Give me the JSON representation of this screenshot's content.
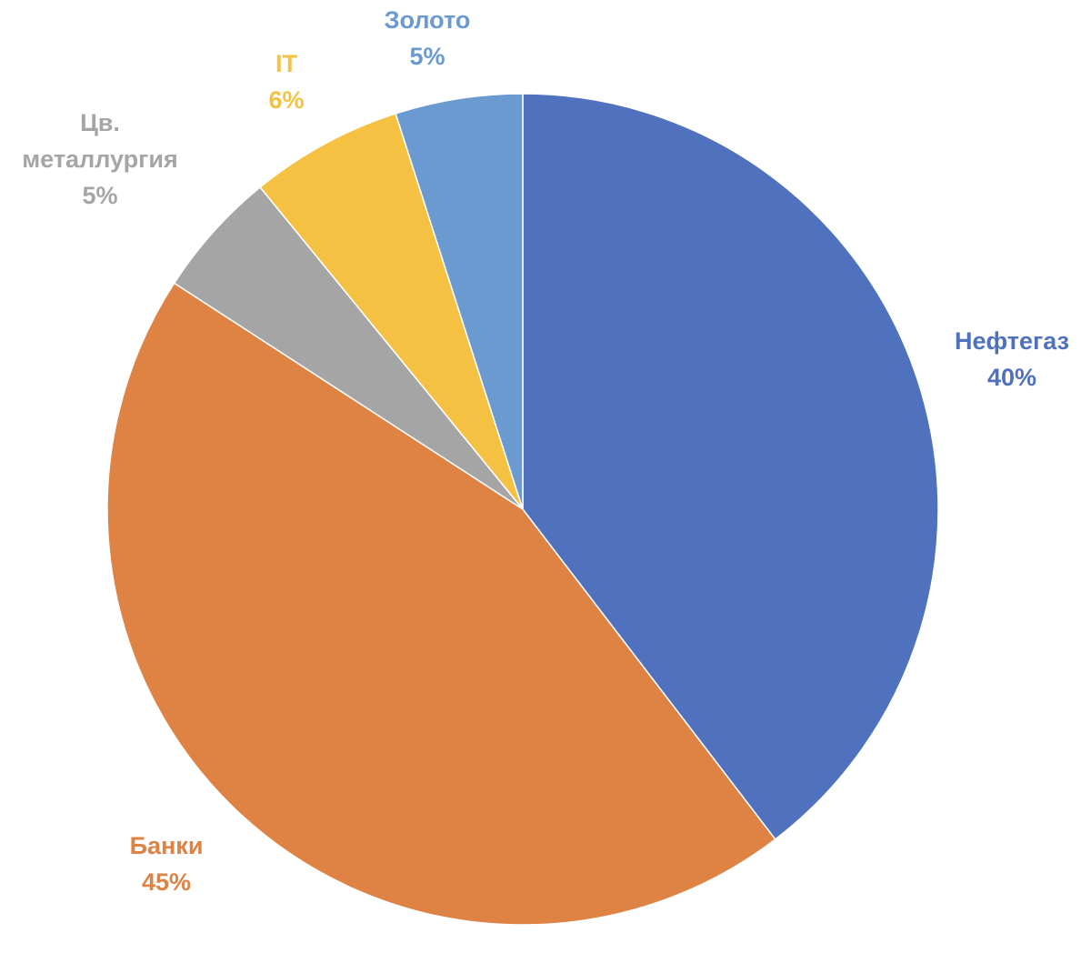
{
  "chart_data": {
    "type": "pie",
    "categories": [
      "Нефтегаз",
      "Банки",
      "Цв. металлургия",
      "IT",
      "Золото"
    ],
    "values": [
      40,
      45,
      5,
      6,
      5
    ],
    "value_labels": [
      "40%",
      "45%",
      "5%",
      "6%",
      "5%"
    ],
    "colors": [
      "#4f71be",
      "#de8344",
      "#a5a5a5",
      "#f5c142",
      "#6a9acf"
    ]
  }
}
